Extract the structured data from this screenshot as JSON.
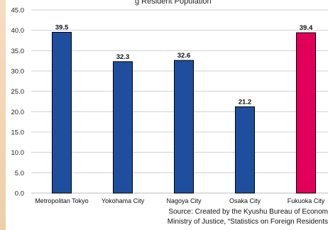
{
  "chart_data": {
    "type": "bar",
    "title": "",
    "title_fragment": "g Resident Population",
    "xlabel": "",
    "ylabel": "",
    "ylim": [
      0,
      45
    ],
    "y_ticks": [
      "0.0",
      "5.0",
      "10.0",
      "15.0",
      "20.0",
      "25.0",
      "30.0",
      "35.0",
      "40.0",
      "45.0"
    ],
    "grid": true,
    "categories": [
      "Metropolitan Tokyo",
      "Yokohama City",
      "Nagoya City",
      "Osaka City",
      "Fukuoka City"
    ],
    "values": [
      39.5,
      32.3,
      32.6,
      21.2,
      39.4
    ],
    "value_labels": [
      "39.5",
      "32.3",
      "32.6",
      "21.2",
      "39.4"
    ],
    "colors": [
      "#1f4e9e",
      "#1f4e9e",
      "#1f4e9e",
      "#1f4e9e",
      "#e0005a"
    ],
    "source_lines": [
      "Source: Created by the Kyushu Bureau of Econom",
      "Ministry of Justice, “Statistics on Foreign Residents"
    ]
  }
}
